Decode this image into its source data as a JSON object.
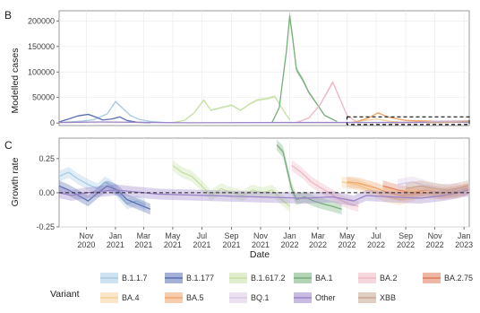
{
  "panel_b_label": "B",
  "panel_c_label": "C",
  "legend_title": "Variant",
  "x_axis_label": "Date",
  "chart_data": [
    {
      "panel": "B",
      "type": "line",
      "ylabel": "Modelled cases",
      "xlabel": "",
      "ylim": [
        -5000,
        220000
      ],
      "yticks": [
        0,
        50000,
        100000,
        150000,
        200000
      ],
      "ytick_labels": [
        "0",
        "50000",
        "100000",
        "150000",
        "200000"
      ],
      "xlim": [
        "2020-09-05",
        "2023-01-12"
      ],
      "grid": true,
      "highlight_box": {
        "x": [
          "2022-05-01",
          "2023-01-12"
        ],
        "y": [
          -3000,
          12000
        ],
        "style": "dashed"
      },
      "series": [
        {
          "name": "B.1.1.7",
          "color": "#a8cbe6",
          "points": [
            [
              "2020-09-15",
              1500
            ],
            [
              "2020-10-15",
              3000
            ],
            [
              "2020-11-15",
              6000
            ],
            [
              "2020-12-15",
              18000
            ],
            [
              "2021-01-01",
              42000
            ],
            [
              "2021-01-15",
              30000
            ],
            [
              "2021-02-01",
              15000
            ],
            [
              "2021-02-20",
              7000
            ],
            [
              "2021-03-15",
              3000
            ],
            [
              "2021-04-15",
              1000
            ],
            [
              "2021-05-01",
              500
            ]
          ]
        },
        {
          "name": "B.1.177",
          "color": "#5a6fb3",
          "points": [
            [
              "2020-09-05",
              2000
            ],
            [
              "2020-09-25",
              8000
            ],
            [
              "2020-10-15",
              14000
            ],
            [
              "2020-11-05",
              17000
            ],
            [
              "2020-11-20",
              12000
            ],
            [
              "2020-12-05",
              6000
            ],
            [
              "2020-12-25",
              8000
            ],
            [
              "2021-01-10",
              12000
            ],
            [
              "2021-01-25",
              5000
            ],
            [
              "2021-02-15",
              1500
            ],
            [
              "2021-03-15",
              500
            ]
          ]
        },
        {
          "name": "B.1.617.2",
          "color": "#c7e0a4",
          "points": [
            [
              "2021-05-01",
              1000
            ],
            [
              "2021-05-25",
              5000
            ],
            [
              "2021-06-15",
              20000
            ],
            [
              "2021-07-05",
              45000
            ],
            [
              "2021-07-20",
              25000
            ],
            [
              "2021-08-10",
              30000
            ],
            [
              "2021-09-01",
              35000
            ],
            [
              "2021-09-20",
              25000
            ],
            [
              "2021-10-10",
              38000
            ],
            [
              "2021-10-25",
              45000
            ],
            [
              "2021-11-15",
              48000
            ],
            [
              "2021-12-01",
              52000
            ],
            [
              "2021-12-15",
              30000
            ],
            [
              "2022-01-01",
              6000
            ]
          ]
        },
        {
          "name": "BA.1",
          "color": "#76b07a",
          "points": [
            [
              "2021-11-25",
              1000
            ],
            [
              "2021-12-10",
              30000
            ],
            [
              "2021-12-25",
              140000
            ],
            [
              "2022-01-01",
              210000
            ],
            [
              "2022-01-08",
              160000
            ],
            [
              "2022-01-15",
              105000
            ],
            [
              "2022-01-28",
              85000
            ],
            [
              "2022-02-10",
              60000
            ],
            [
              "2022-02-25",
              40000
            ],
            [
              "2022-03-15",
              15000
            ],
            [
              "2022-04-10",
              3000
            ]
          ]
        },
        {
          "name": "BA.2",
          "color": "#f1b7c3",
          "points": [
            [
              "2022-01-15",
              1000
            ],
            [
              "2022-02-10",
              10000
            ],
            [
              "2022-03-05",
              35000
            ],
            [
              "2022-03-20",
              60000
            ],
            [
              "2022-04-01",
              80000
            ],
            [
              "2022-04-15",
              50000
            ],
            [
              "2022-05-01",
              15000
            ],
            [
              "2022-05-20",
              3000
            ]
          ]
        },
        {
          "name": "BA.2.75",
          "color": "#e07a5a",
          "points": [
            [
              "2022-08-01",
              500
            ],
            [
              "2022-09-15",
              1500
            ],
            [
              "2022-11-01",
              3000
            ],
            [
              "2022-12-15",
              4000
            ],
            [
              "2023-01-10",
              4000
            ]
          ]
        },
        {
          "name": "BA.4",
          "color": "#f6cf9a",
          "points": [
            [
              "2022-05-01",
              500
            ],
            [
              "2022-06-01",
              4000
            ],
            [
              "2022-07-01",
              8000
            ],
            [
              "2022-08-01",
              3000
            ],
            [
              "2022-09-01",
              800
            ]
          ]
        },
        {
          "name": "BA.5",
          "color": "#efa56b",
          "points": [
            [
              "2022-05-15",
              1000
            ],
            [
              "2022-06-15",
              10000
            ],
            [
              "2022-07-05",
              20000
            ],
            [
              "2022-07-25",
              12000
            ],
            [
              "2022-09-01",
              5000
            ],
            [
              "2022-10-15",
              4000
            ],
            [
              "2022-11-15",
              3000
            ],
            [
              "2022-12-31",
              2000
            ]
          ]
        },
        {
          "name": "BQ.1",
          "color": "#d9c9e6",
          "points": [
            [
              "2022-09-15",
              500
            ],
            [
              "2022-10-15",
              2000
            ],
            [
              "2022-11-15",
              4000
            ],
            [
              "2022-12-15",
              4000
            ],
            [
              "2023-01-10",
              3000
            ]
          ]
        },
        {
          "name": "Other",
          "color": "#9a84c8",
          "points": [
            [
              "2020-09-05",
              1000
            ],
            [
              "2020-12-01",
              2000
            ],
            [
              "2021-06-01",
              500
            ],
            [
              "2022-01-01",
              1000
            ],
            [
              "2022-07-01",
              1000
            ],
            [
              "2023-01-10",
              1500
            ]
          ]
        },
        {
          "name": "XBB",
          "color": "#c9a58f",
          "points": [
            [
              "2022-10-15",
              300
            ],
            [
              "2022-12-01",
              1200
            ],
            [
              "2023-01-10",
              3000
            ]
          ]
        }
      ]
    },
    {
      "panel": "C",
      "type": "line",
      "ylabel": "Growth rate",
      "xlabel": "Date",
      "ylim": [
        -0.25,
        0.4
      ],
      "yticks": [
        -0.25,
        0,
        0.25
      ],
      "ytick_labels": [
        "-0.25",
        "0.00",
        "0.25"
      ],
      "xlim": [
        "2020-09-05",
        "2023-01-12"
      ],
      "x_ticks": [
        {
          "date": "2020-11-01",
          "line1": "Nov",
          "line2": "2020"
        },
        {
          "date": "2021-01-01",
          "line1": "Jan",
          "line2": "2021"
        },
        {
          "date": "2021-03-01",
          "line1": "Mar",
          "line2": "2021"
        },
        {
          "date": "2021-05-01",
          "line1": "May",
          "line2": "2021"
        },
        {
          "date": "2021-07-01",
          "line1": "Jul",
          "line2": "2021"
        },
        {
          "date": "2021-09-01",
          "line1": "Sep",
          "line2": "2021"
        },
        {
          "date": "2021-11-01",
          "line1": "Nov",
          "line2": "2021"
        },
        {
          "date": "2022-01-01",
          "line1": "Jan",
          "line2": "2022"
        },
        {
          "date": "2022-03-01",
          "line1": "Mar",
          "line2": "2022"
        },
        {
          "date": "2022-05-01",
          "line1": "May",
          "line2": "2022"
        },
        {
          "date": "2022-07-01",
          "line1": "Jul",
          "line2": "2022"
        },
        {
          "date": "2022-09-01",
          "line1": "Sep",
          "line2": "2022"
        },
        {
          "date": "2022-11-01",
          "line1": "Nov",
          "line2": "2022"
        },
        {
          "date": "2023-01-01",
          "line1": "Jan",
          "line2": "2023"
        }
      ],
      "zero_line": "dashed",
      "grid": true,
      "series": [
        {
          "name": "B.1.1.7",
          "color": "#a8cbe6",
          "points": [
            [
              "2020-09-05",
              0.12
            ],
            [
              "2020-09-25",
              0.15
            ],
            [
              "2020-10-15",
              0.1
            ],
            [
              "2020-11-05",
              0.06
            ],
            [
              "2020-11-25",
              0.03
            ],
            [
              "2020-12-10",
              0.08
            ],
            [
              "2020-12-25",
              0.05
            ],
            [
              "2021-01-10",
              -0.02
            ],
            [
              "2021-01-25",
              -0.08
            ],
            [
              "2021-02-15",
              -0.06
            ],
            [
              "2021-03-05",
              -0.09
            ]
          ]
        },
        {
          "name": "B.1.177",
          "color": "#5a6fb3",
          "points": [
            [
              "2020-09-05",
              0.05
            ],
            [
              "2020-09-25",
              0.02
            ],
            [
              "2020-10-15",
              -0.02
            ],
            [
              "2020-11-05",
              -0.06
            ],
            [
              "2020-11-25",
              0.0
            ],
            [
              "2020-12-15",
              0.05
            ],
            [
              "2021-01-05",
              0.02
            ],
            [
              "2021-01-25",
              -0.05
            ],
            [
              "2021-02-15",
              -0.08
            ],
            [
              "2021-03-15",
              -0.12
            ]
          ]
        },
        {
          "name": "B.1.617.2",
          "color": "#c7e0a4",
          "points": [
            [
              "2021-05-01",
              0.2
            ],
            [
              "2021-05-20",
              0.15
            ],
            [
              "2021-06-10",
              0.12
            ],
            [
              "2021-07-01",
              0.05
            ],
            [
              "2021-07-20",
              -0.02
            ],
            [
              "2021-08-10",
              0.03
            ],
            [
              "2021-09-01",
              0.0
            ],
            [
              "2021-09-25",
              -0.02
            ],
            [
              "2021-10-15",
              0.02
            ],
            [
              "2021-11-05",
              0.0
            ],
            [
              "2021-11-25",
              0.02
            ],
            [
              "2021-12-15",
              -0.05
            ],
            [
              "2022-01-01",
              -0.1
            ]
          ]
        },
        {
          "name": "BA.1",
          "color": "#76b07a",
          "points": [
            [
              "2021-12-05",
              0.35
            ],
            [
              "2021-12-18",
              0.3
            ],
            [
              "2021-12-28",
              0.15
            ],
            [
              "2022-01-05",
              0.03
            ],
            [
              "2022-01-15",
              -0.05
            ],
            [
              "2022-02-01",
              -0.03
            ],
            [
              "2022-02-20",
              -0.06
            ],
            [
              "2022-03-10",
              -0.08
            ],
            [
              "2022-04-01",
              -0.1
            ],
            [
              "2022-04-20",
              -0.12
            ]
          ]
        },
        {
          "name": "BA.2",
          "color": "#f1b7c3",
          "points": [
            [
              "2022-01-05",
              0.2
            ],
            [
              "2022-01-25",
              0.15
            ],
            [
              "2022-02-15",
              0.08
            ],
            [
              "2022-03-05",
              0.04
            ],
            [
              "2022-03-25",
              0.0
            ],
            [
              "2022-04-15",
              -0.05
            ],
            [
              "2022-05-05",
              -0.08
            ],
            [
              "2022-05-25",
              -0.1
            ]
          ]
        },
        {
          "name": "BA.2.75",
          "color": "#e07a5a",
          "points": [
            [
              "2022-07-15",
              0.05
            ],
            [
              "2022-08-15",
              0.02
            ],
            [
              "2022-09-15",
              0.0
            ],
            [
              "2022-10-15",
              0.02
            ],
            [
              "2022-11-15",
              0.0
            ],
            [
              "2022-12-15",
              0.01
            ],
            [
              "2023-01-10",
              0.03
            ]
          ]
        },
        {
          "name": "BA.4",
          "color": "#f6cf9a",
          "points": [
            [
              "2022-04-20",
              0.08
            ],
            [
              "2022-05-20",
              0.06
            ],
            [
              "2022-06-20",
              0.02
            ],
            [
              "2022-07-20",
              -0.03
            ],
            [
              "2022-08-20",
              -0.05
            ],
            [
              "2022-09-20",
              -0.02
            ]
          ]
        },
        {
          "name": "BA.5",
          "color": "#efa56b",
          "points": [
            [
              "2022-05-01",
              0.08
            ],
            [
              "2022-05-25",
              0.07
            ],
            [
              "2022-06-15",
              0.05
            ],
            [
              "2022-07-05",
              0.03
            ],
            [
              "2022-07-25",
              0.0
            ],
            [
              "2022-08-20",
              -0.02
            ],
            [
              "2022-09-15",
              -0.01
            ],
            [
              "2022-10-15",
              0.0
            ],
            [
              "2022-11-15",
              -0.01
            ],
            [
              "2022-12-15",
              0.0
            ],
            [
              "2023-01-10",
              0.02
            ]
          ]
        },
        {
          "name": "BQ.1",
          "color": "#d9c9e6",
          "points": [
            [
              "2022-08-15",
              0.06
            ],
            [
              "2022-09-15",
              0.08
            ],
            [
              "2022-10-15",
              0.05
            ],
            [
              "2022-11-15",
              0.02
            ],
            [
              "2022-12-15",
              0.03
            ],
            [
              "2023-01-10",
              0.0
            ]
          ]
        },
        {
          "name": "Other",
          "color": "#9a84c8",
          "points": [
            [
              "2020-09-05",
              0.0
            ],
            [
              "2020-10-01",
              -0.02
            ],
            [
              "2020-11-01",
              0.0
            ],
            [
              "2021-01-01",
              0.02
            ],
            [
              "2021-04-01",
              -0.01
            ],
            [
              "2022-02-01",
              -0.04
            ],
            [
              "2022-04-01",
              -0.03
            ],
            [
              "2022-05-15",
              -0.06
            ],
            [
              "2022-06-10",
              -0.02
            ],
            [
              "2022-08-01",
              -0.03
            ],
            [
              "2022-10-01",
              -0.04
            ],
            [
              "2022-11-20",
              -0.02
            ],
            [
              "2022-12-20",
              0.0
            ],
            [
              "2023-01-10",
              0.02
            ]
          ]
        },
        {
          "name": "XBB",
          "color": "#c9a58f",
          "points": [
            [
              "2022-09-01",
              0.03
            ],
            [
              "2022-10-01",
              0.05
            ],
            [
              "2022-11-01",
              0.03
            ],
            [
              "2022-12-01",
              0.02
            ],
            [
              "2023-01-10",
              0.05
            ]
          ]
        }
      ]
    }
  ]
}
